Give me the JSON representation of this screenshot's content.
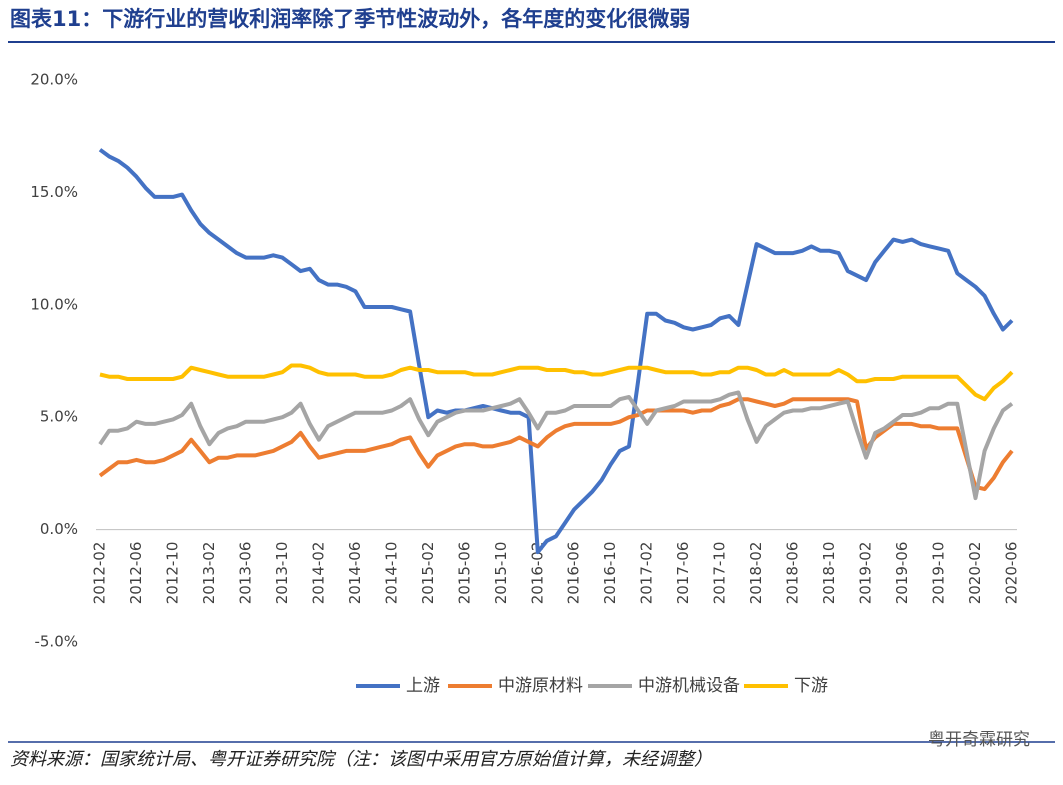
{
  "chart_data": {
    "type": "line",
    "title": "图表11：下游行业的营收利润率除了季节性波动外，各年度的变化很微弱",
    "note": "资料来源：国家统计局、粤开证券研究院（注：该图中采用官方原始值计算，未经调整）",
    "watermark": "粤开奇霖研究",
    "categories": [
      "2012-02",
      null,
      null,
      null,
      "2012-06",
      null,
      null,
      null,
      "2012-10",
      null,
      null,
      null,
      "2013-02",
      null,
      null,
      null,
      "2013-06",
      null,
      null,
      null,
      "2013-10",
      null,
      null,
      null,
      "2014-02",
      null,
      null,
      null,
      "2014-06",
      null,
      null,
      null,
      "2014-10",
      null,
      null,
      null,
      "2015-02",
      null,
      null,
      null,
      "2015-06",
      null,
      null,
      null,
      "2015-10",
      null,
      null,
      null,
      "2016-02",
      null,
      null,
      null,
      "2016-06",
      null,
      null,
      null,
      "2016-10",
      null,
      null,
      null,
      "2017-02",
      null,
      null,
      null,
      "2017-06",
      null,
      null,
      null,
      "2017-10",
      null,
      null,
      null,
      "2018-02",
      null,
      null,
      null,
      "2018-06",
      null,
      null,
      null,
      "2018-10",
      null,
      null,
      null,
      "2019-02",
      null,
      null,
      null,
      "2019-06",
      null,
      null,
      null,
      "2019-10",
      null,
      null,
      null,
      "2020-02",
      null,
      null,
      null,
      "2020-06"
    ],
    "series": [
      {
        "name": "上游",
        "color": "#4472c4",
        "values": [
          16.9,
          16.6,
          16.4,
          16.1,
          15.7,
          15.2,
          14.8,
          14.8,
          14.8,
          14.9,
          14.2,
          13.6,
          13.2,
          12.9,
          12.6,
          12.3,
          12.1,
          12.1,
          12.1,
          12.2,
          12.1,
          11.8,
          11.5,
          11.6,
          11.1,
          10.9,
          10.9,
          10.8,
          10.6,
          9.9,
          9.9,
          9.9,
          9.9,
          9.8,
          9.7,
          7.3,
          5.0,
          5.3,
          5.2,
          5.3,
          5.3,
          5.4,
          5.5,
          5.4,
          5.3,
          5.2,
          5.2,
          5.0,
          -1.0,
          -0.5,
          -0.3,
          0.3,
          0.9,
          1.3,
          1.7,
          2.2,
          2.9,
          3.5,
          3.7,
          6.6,
          9.6,
          9.6,
          9.3,
          9.2,
          9.0,
          8.9,
          9.0,
          9.1,
          9.4,
          9.5,
          9.1,
          10.9,
          12.7,
          12.5,
          12.3,
          12.3,
          12.3,
          12.4,
          12.6,
          12.4,
          12.4,
          12.3,
          11.5,
          11.3,
          11.1,
          11.9,
          12.4,
          12.9,
          12.8,
          12.9,
          12.7,
          12.6,
          12.5,
          12.4,
          11.4,
          11.1,
          10.8,
          10.4,
          9.6,
          8.9,
          9.3
        ]
      },
      {
        "name": "中游原材料",
        "color": "#ed7d31",
        "values": [
          2.4,
          2.7,
          3.0,
          3.0,
          3.1,
          3.0,
          3.0,
          3.1,
          3.3,
          3.5,
          4.0,
          3.5,
          3.0,
          3.2,
          3.2,
          3.3,
          3.3,
          3.3,
          3.4,
          3.5,
          3.7,
          3.9,
          4.3,
          3.7,
          3.2,
          3.3,
          3.4,
          3.5,
          3.5,
          3.5,
          3.6,
          3.7,
          3.8,
          4.0,
          4.1,
          3.4,
          2.8,
          3.3,
          3.5,
          3.7,
          3.8,
          3.8,
          3.7,
          3.7,
          3.8,
          3.9,
          4.1,
          3.9,
          3.7,
          4.1,
          4.4,
          4.6,
          4.7,
          4.7,
          4.7,
          4.7,
          4.7,
          4.8,
          5.0,
          5.1,
          5.3,
          5.3,
          5.3,
          5.3,
          5.3,
          5.2,
          5.3,
          5.3,
          5.5,
          5.6,
          5.8,
          5.8,
          5.7,
          5.6,
          5.5,
          5.6,
          5.8,
          5.8,
          5.8,
          5.8,
          5.8,
          5.8,
          5.8,
          5.7,
          3.6,
          4.1,
          4.4,
          4.7,
          4.7,
          4.7,
          4.6,
          4.6,
          4.5,
          4.5,
          4.5,
          3.2,
          1.9,
          1.8,
          2.3,
          3.0,
          3.5
        ]
      },
      {
        "name": "中游机械设备",
        "color": "#a5a5a5",
        "values": [
          3.8,
          4.4,
          4.4,
          4.5,
          4.8,
          4.7,
          4.7,
          4.8,
          4.9,
          5.1,
          5.6,
          4.6,
          3.8,
          4.3,
          4.5,
          4.6,
          4.8,
          4.8,
          4.8,
          4.9,
          5.0,
          5.2,
          5.6,
          4.7,
          4.0,
          4.6,
          4.8,
          5.0,
          5.2,
          5.2,
          5.2,
          5.2,
          5.3,
          5.5,
          5.8,
          4.9,
          4.2,
          4.8,
          5.0,
          5.2,
          5.3,
          5.3,
          5.3,
          5.4,
          5.5,
          5.6,
          5.8,
          5.2,
          4.5,
          5.2,
          5.2,
          5.3,
          5.5,
          5.5,
          5.5,
          5.5,
          5.5,
          5.8,
          5.9,
          5.3,
          4.7,
          5.3,
          5.4,
          5.5,
          5.7,
          5.7,
          5.7,
          5.7,
          5.8,
          6.0,
          6.1,
          4.9,
          3.9,
          4.6,
          4.9,
          5.2,
          5.3,
          5.3,
          5.4,
          5.4,
          5.5,
          5.6,
          5.7,
          4.4,
          3.2,
          4.3,
          4.5,
          4.8,
          5.1,
          5.1,
          5.2,
          5.4,
          5.4,
          5.6,
          5.6,
          3.5,
          1.4,
          3.5,
          4.5,
          5.3,
          5.6
        ]
      },
      {
        "name": "下游",
        "color": "#ffc000",
        "values": [
          6.9,
          6.8,
          6.8,
          6.7,
          6.7,
          6.7,
          6.7,
          6.7,
          6.7,
          6.8,
          7.2,
          7.1,
          7.0,
          6.9,
          6.8,
          6.8,
          6.8,
          6.8,
          6.8,
          6.9,
          7.0,
          7.3,
          7.3,
          7.2,
          7.0,
          6.9,
          6.9,
          6.9,
          6.9,
          6.8,
          6.8,
          6.8,
          6.9,
          7.1,
          7.2,
          7.1,
          7.1,
          7.0,
          7.0,
          7.0,
          7.0,
          6.9,
          6.9,
          6.9,
          7.0,
          7.1,
          7.2,
          7.2,
          7.2,
          7.1,
          7.1,
          7.1,
          7.0,
          7.0,
          6.9,
          6.9,
          7.0,
          7.1,
          7.2,
          7.2,
          7.2,
          7.1,
          7.0,
          7.0,
          7.0,
          7.0,
          6.9,
          6.9,
          7.0,
          7.0,
          7.2,
          7.2,
          7.1,
          6.9,
          6.9,
          7.1,
          6.9,
          6.9,
          6.9,
          6.9,
          6.9,
          7.1,
          6.9,
          6.6,
          6.6,
          6.7,
          6.7,
          6.7,
          6.8,
          6.8,
          6.8,
          6.8,
          6.8,
          6.8,
          6.8,
          6.4,
          6.0,
          5.8,
          6.3,
          6.6,
          7.0
        ]
      }
    ],
    "ylim": [
      -5,
      20
    ],
    "yticks": [
      {
        "value": -5,
        "label": "-5.0%"
      },
      {
        "value": 0,
        "label": "0.0%"
      },
      {
        "value": 5,
        "label": "5.0%"
      },
      {
        "value": 10,
        "label": "10.0%"
      },
      {
        "value": 15,
        "label": "15.0%"
      },
      {
        "value": 20,
        "label": "20.0%"
      }
    ],
    "grid": false,
    "legend": "bottom"
  }
}
